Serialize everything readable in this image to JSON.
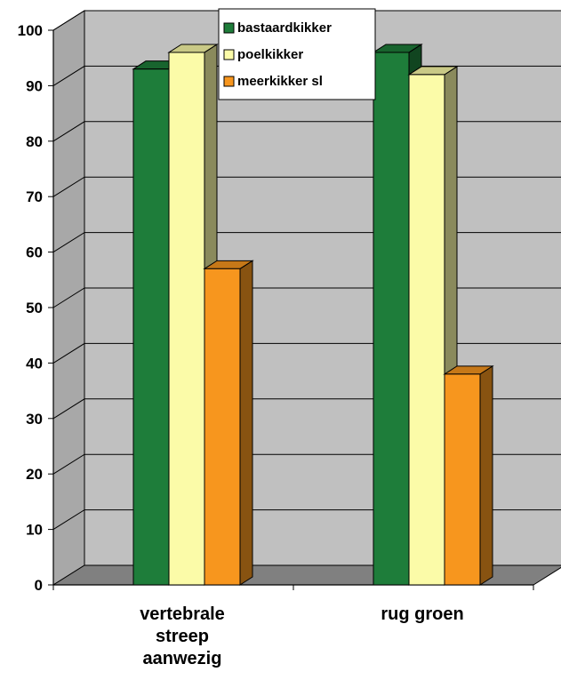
{
  "chart_data": {
    "type": "bar",
    "categories": [
      "vertebrale streep aanwezig",
      "rug groen"
    ],
    "category_lines": [
      [
        "vertebrale",
        "streep",
        "aanwezig"
      ],
      [
        "rug groen"
      ]
    ],
    "series": [
      {
        "name": "bastaardkikker",
        "values": [
          93,
          96
        ],
        "color": "#1e7d3a"
      },
      {
        "name": "poelkikker",
        "values": [
          96,
          92
        ],
        "color": "#fbfba8"
      },
      {
        "name": "meerkikker sl",
        "values": [
          57,
          38
        ],
        "color": "#f7961e"
      }
    ],
    "ylim": [
      0,
      100
    ],
    "yticks": [
      0,
      10,
      20,
      30,
      40,
      50,
      60,
      70,
      80,
      90,
      100
    ],
    "grid": true,
    "legend_position": "top-center",
    "style": "3d-clustered-column",
    "colors": {
      "wall": "#c0c0c0",
      "floor": "#808080",
      "gridline": "#000000"
    }
  }
}
